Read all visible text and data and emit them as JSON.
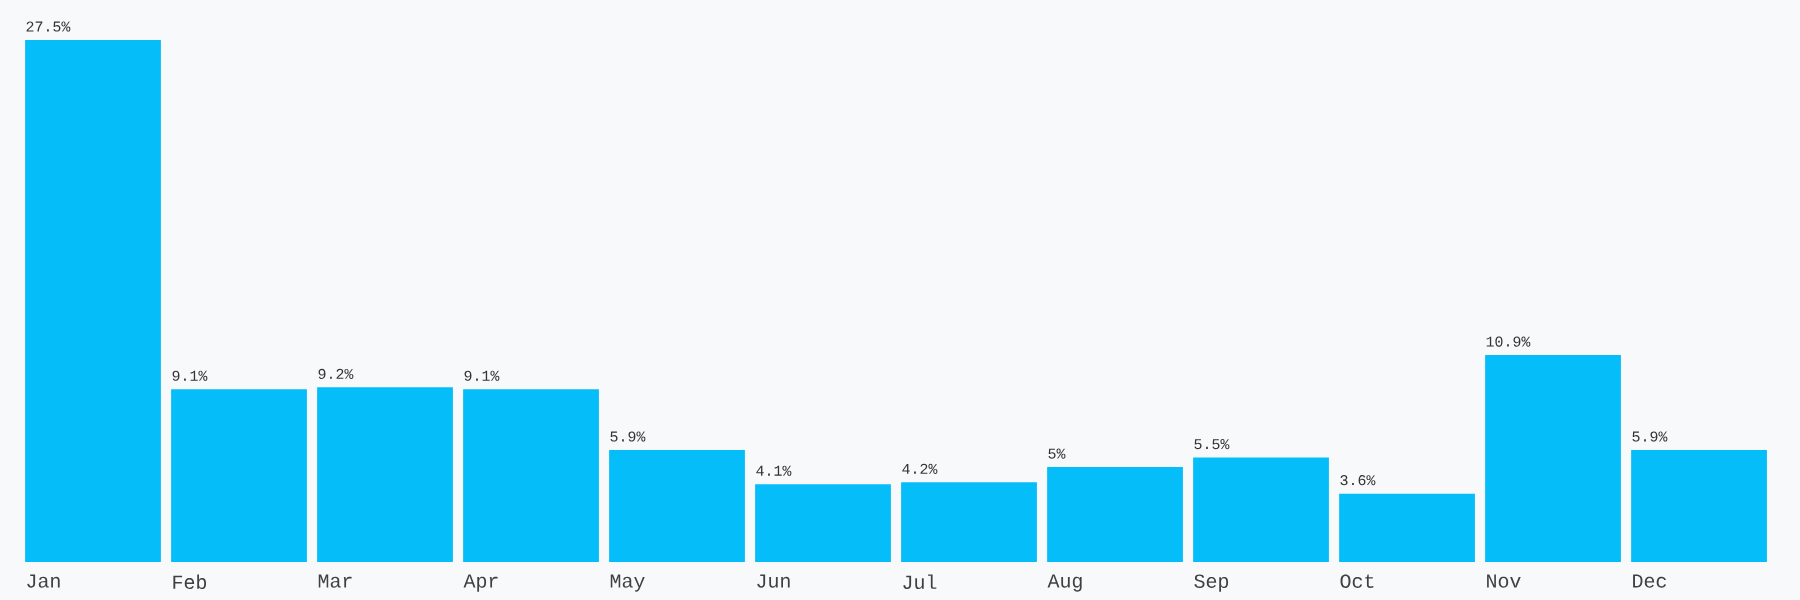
{
  "chart_data": {
    "type": "bar",
    "color": "#05bdf9",
    "categories": [
      "Jan",
      "Feb",
      "Mar",
      "Apr",
      "May",
      "Jun",
      "Jul",
      "Aug",
      "Sep",
      "Oct",
      "Nov",
      "Dec"
    ],
    "values": [
      27.5,
      9.1,
      9.2,
      9.1,
      5.9,
      4.1,
      4.2,
      5,
      5.5,
      3.6,
      10.9,
      5.9
    ],
    "value_labels": [
      "27.5%",
      "9.1%",
      "9.2%",
      "9.1%",
      "5.9%",
      "4.1%",
      "4.2%",
      "5%",
      "5.5%",
      "3.6%",
      "10.9%",
      "5.9%"
    ]
  }
}
